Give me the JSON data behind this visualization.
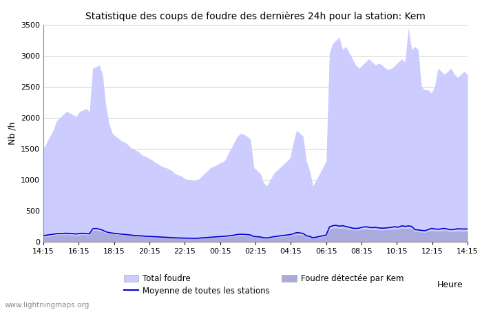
{
  "title": "Statistique des coups de foudre des dernières 24h pour la station: Kem",
  "xlabel": "Heure",
  "ylabel": "Nb /h",
  "ylim": [
    0,
    3500
  ],
  "yticks": [
    0,
    500,
    1000,
    1500,
    2000,
    2500,
    3000,
    3500
  ],
  "x_labels": [
    "14:15",
    "16:15",
    "18:15",
    "20:15",
    "22:15",
    "00:15",
    "02:15",
    "04:15",
    "06:15",
    "08:15",
    "10:15",
    "12:15",
    "14:15"
  ],
  "watermark": "www.lightningmaps.org",
  "color_total": "#ccccff",
  "color_kem": "#aaaadd",
  "color_mean": "#0000cc",
  "total_foudre": [
    1500,
    1600,
    1700,
    1800,
    1950,
    2000,
    2050,
    2100,
    2080,
    2050,
    2020,
    2100,
    2120,
    2150,
    2100,
    2800,
    2820,
    2850,
    2700,
    2200,
    1900,
    1750,
    1700,
    1660,
    1620,
    1600,
    1550,
    1500,
    1480,
    1450,
    1400,
    1380,
    1350,
    1320,
    1280,
    1250,
    1220,
    1200,
    1180,
    1150,
    1100,
    1080,
    1060,
    1020,
    1000,
    990,
    980,
    1000,
    1050,
    1100,
    1150,
    1200,
    1220,
    1250,
    1280,
    1300,
    1400,
    1500,
    1600,
    1700,
    1750,
    1730,
    1700,
    1650,
    1200,
    1150,
    1100,
    950,
    900,
    1000,
    1100,
    1150,
    1200,
    1250,
    1300,
    1350,
    1600,
    1800,
    1750,
    1700,
    1300,
    1150,
    900,
    1000,
    1100,
    1200,
    1300,
    3050,
    3200,
    3250,
    3300,
    3100,
    3150,
    3050,
    2950,
    2850,
    2800,
    2850,
    2900,
    2950,
    2900,
    2850,
    2880,
    2850,
    2800,
    2780,
    2800,
    2850,
    2900,
    2950,
    2900,
    3450,
    3100,
    3150,
    3100,
    2500,
    2450,
    2450,
    2400,
    2500,
    2800,
    2750,
    2700,
    2750,
    2800,
    2700,
    2650,
    2700,
    2750,
    2700
  ],
  "kem_foudre": [
    80,
    85,
    90,
    100,
    110,
    112,
    115,
    115,
    110,
    105,
    100,
    110,
    115,
    110,
    105,
    180,
    185,
    175,
    160,
    140,
    130,
    125,
    120,
    115,
    110,
    105,
    100,
    95,
    90,
    88,
    85,
    80,
    78,
    75,
    72,
    70,
    68,
    65,
    63,
    60,
    58,
    56,
    55,
    54,
    52,
    51,
    50,
    52,
    55,
    58,
    62,
    65,
    68,
    70,
    72,
    74,
    78,
    82,
    88,
    95,
    100,
    98,
    95,
    90,
    72,
    68,
    65,
    55,
    52,
    60,
    68,
    72,
    78,
    82,
    88,
    92,
    105,
    120,
    115,
    110,
    80,
    72,
    55,
    62,
    70,
    80,
    88,
    200,
    220,
    225,
    215,
    220,
    210,
    200,
    190,
    185,
    190,
    200,
    205,
    200,
    195,
    198,
    192,
    188,
    190,
    195,
    200,
    205,
    200,
    220,
    210,
    215,
    210,
    165,
    160,
    155,
    150,
    165,
    180,
    175,
    170,
    175,
    180,
    170,
    162,
    167,
    172,
    170,
    168,
    172
  ],
  "mean_line": [
    100,
    108,
    115,
    122,
    130,
    132,
    135,
    138,
    135,
    130,
    126,
    135,
    138,
    133,
    128,
    210,
    215,
    205,
    188,
    162,
    148,
    140,
    135,
    128,
    122,
    118,
    112,
    106,
    100,
    98,
    95,
    90,
    88,
    85,
    82,
    79,
    76,
    73,
    70,
    68,
    65,
    62,
    61,
    60,
    58,
    57,
    56,
    58,
    62,
    66,
    70,
    74,
    78,
    82,
    86,
    88,
    94,
    100,
    108,
    118,
    122,
    120,
    116,
    110,
    86,
    82,
    78,
    65,
    62,
    72,
    82,
    88,
    96,
    102,
    108,
    115,
    130,
    148,
    143,
    135,
    98,
    86,
    65,
    76,
    86,
    98,
    108,
    238,
    260,
    265,
    252,
    260,
    246,
    234,
    220,
    215,
    220,
    235,
    242,
    235,
    228,
    232,
    224,
    220,
    222,
    228,
    236,
    242,
    235,
    258,
    248,
    256,
    248,
    196,
    190,
    183,
    178,
    196,
    215,
    208,
    202,
    210,
    215,
    203,
    195,
    202,
    210,
    208,
    205,
    210
  ]
}
